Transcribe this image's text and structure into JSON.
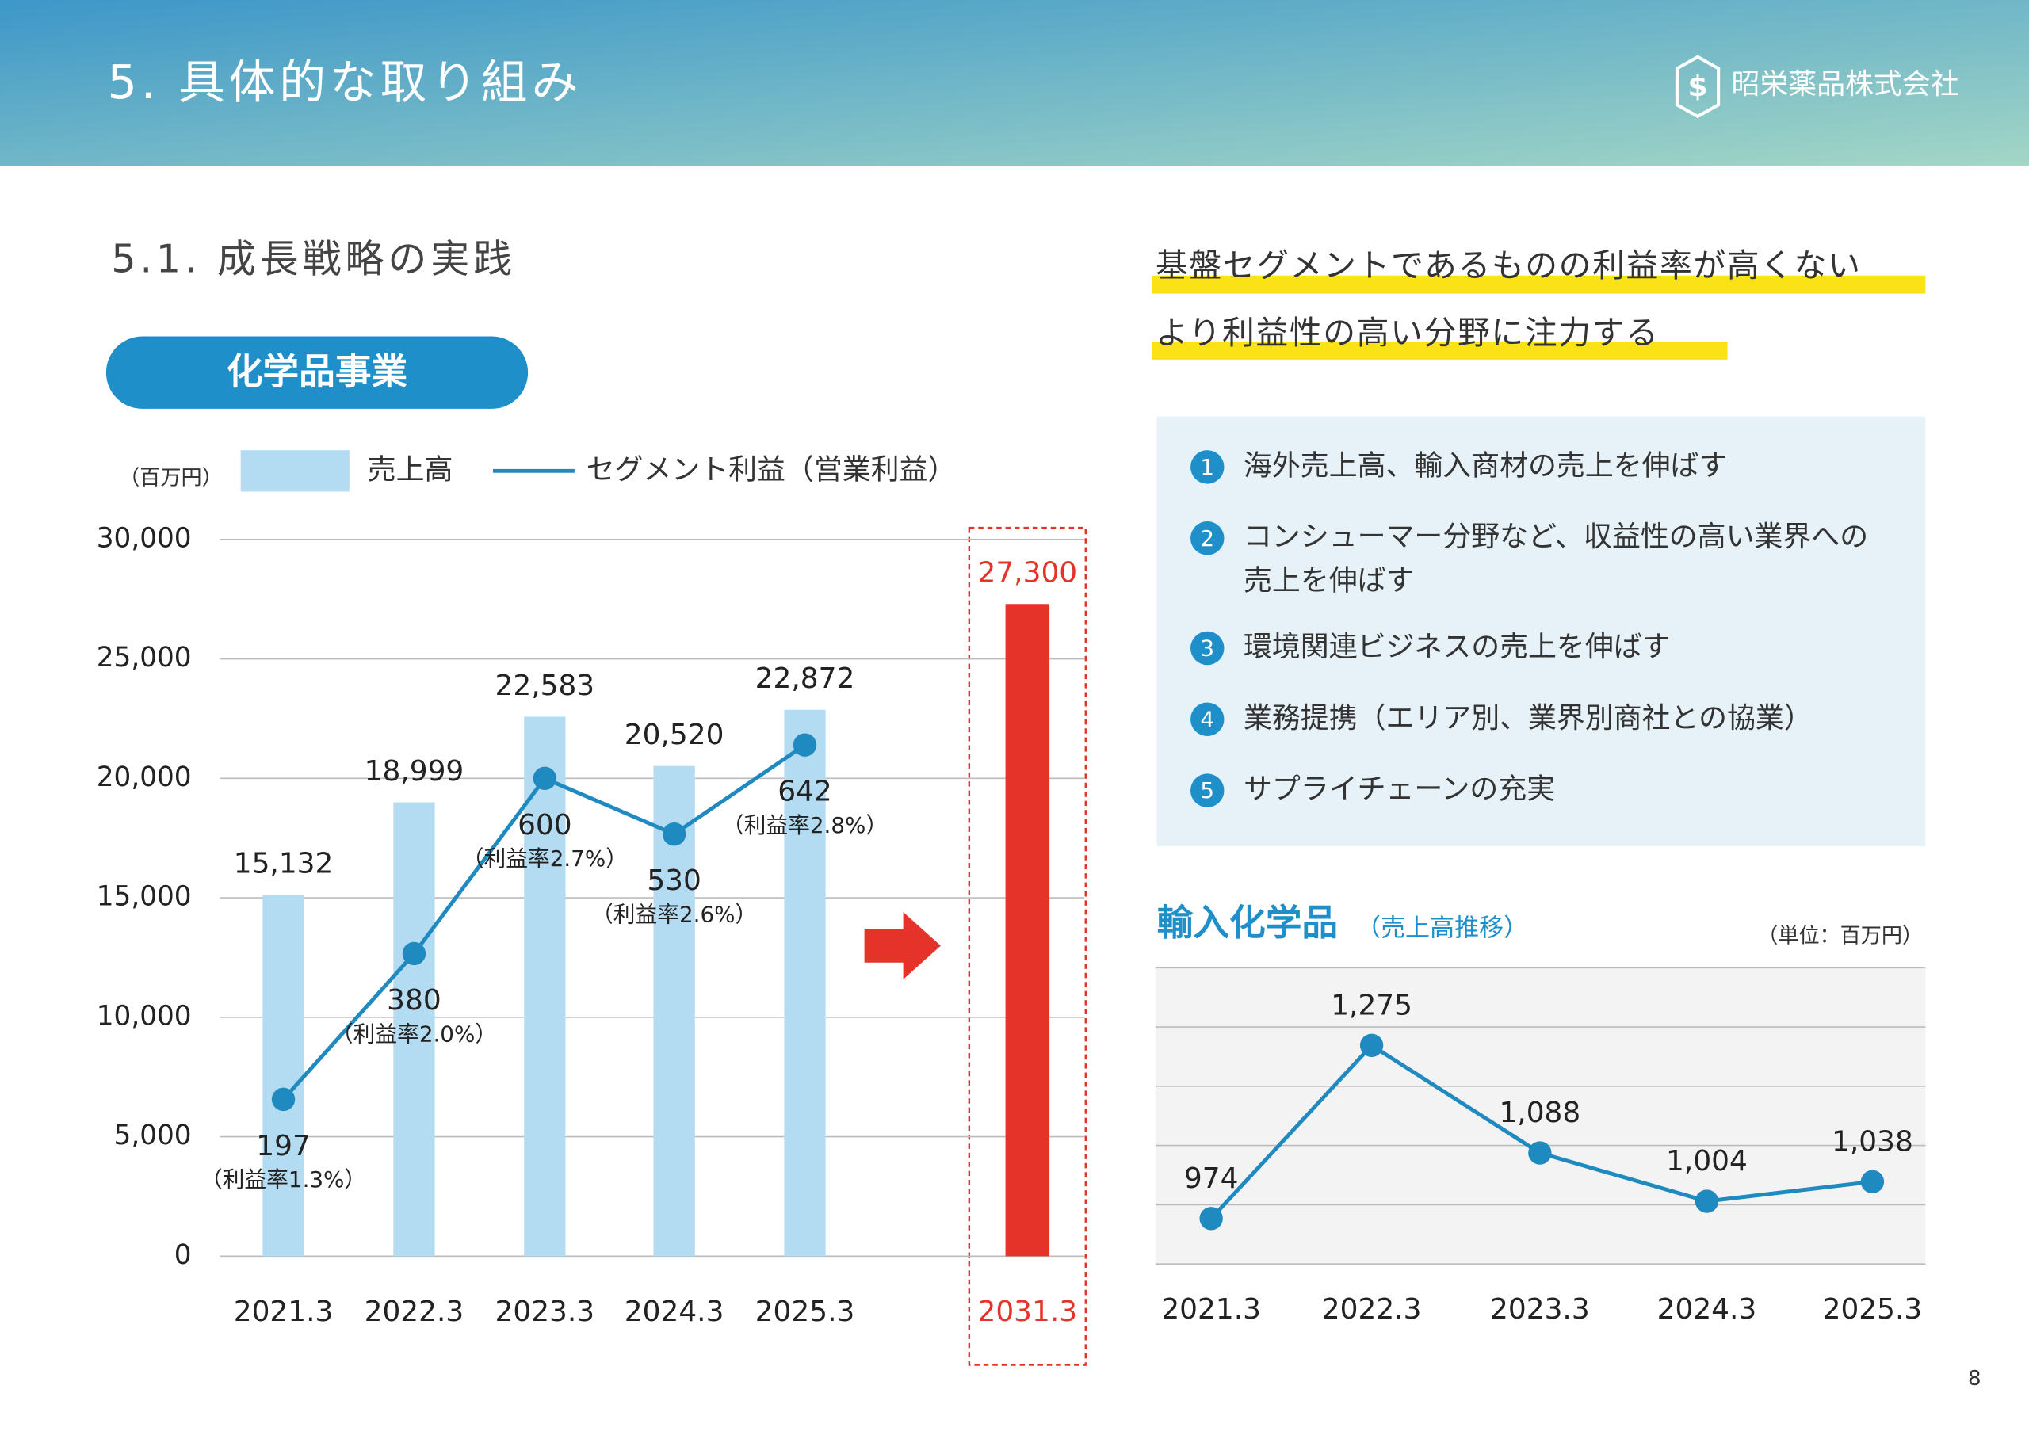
{
  "header": {
    "title": "5. 具体的な取り組み",
    "company": "昭栄薬品株式会社"
  },
  "section_title": "5.1. 成長戦略の実践",
  "badge": "化学品事業",
  "highlights": [
    "基盤セグメントであるものの利益率が高くない",
    "より利益性の高い分野に注力する"
  ],
  "items": [
    {
      "number": 1,
      "lines": [
        "海外売上高、輸入商材の売上を伸ばす"
      ]
    },
    {
      "number": 2,
      "lines": [
        "コンシューマー分野など、収益性の高い業界への",
        "売上を伸ばす"
      ]
    },
    {
      "number": 3,
      "lines": [
        "環境関連ビジネスの売上を伸ばす"
      ]
    },
    {
      "number": 4,
      "lines": [
        "業務提携（エリア別、業界別商社との協業）"
      ]
    },
    {
      "number": 5,
      "lines": [
        "サプライチェーンの充実"
      ]
    }
  ],
  "page_number": 8,
  "chart_data": [
    {
      "type": "bar-line",
      "unit": "（百万円）",
      "categories": [
        "2021.3",
        "2022.3",
        "2023.3",
        "2024.3",
        "2025.3",
        "2031.3"
      ],
      "series": [
        {
          "name": "売上高",
          "type": "bar",
          "colors": [
            "#b3dbf2",
            "#b3dbf2",
            "#b3dbf2",
            "#b3dbf2",
            "#b3dbf2",
            "#e63329"
          ],
          "values": [
            15132,
            18999,
            22583,
            20520,
            22872,
            27300
          ],
          "value_labels": [
            "15,132",
            "18,999",
            "22,583",
            "20,520",
            "22,872",
            "27,300"
          ]
        },
        {
          "name": "セグメント利益（営業利益）",
          "type": "line",
          "axis": "y2",
          "color": "#1f8ac0",
          "values": [
            197,
            380,
            600,
            530,
            642,
            null
          ],
          "annotations": [
            "（利益率1.3%）",
            "（利益率2.0%）",
            "（利益率2.7%）",
            "（利益率2.6%）",
            "（利益率2.8%）",
            null
          ]
        }
      ],
      "ylim": [
        0,
        30000
      ],
      "yticks": [
        0,
        {
          "value": 5000,
          "label": "5,000"
        },
        {
          "value": 10000,
          "label": "10,000"
        },
        {
          "value": 15000,
          "label": "15,000"
        },
        {
          "value": 20000,
          "label": "20,000"
        },
        {
          "value": 25000,
          "label": "25,000"
        },
        {
          "value": 30000,
          "label": "30,000"
        }
      ],
      "y2lim": [
        0,
        900
      ],
      "grid": true
    },
    {
      "type": "line",
      "title": "輸入化学品",
      "subtitle": "（売上高推移）",
      "unit": "（単位：百万円）",
      "categories": [
        "2021.3",
        "2022.3",
        "2023.3",
        "2024.3",
        "2025.3"
      ],
      "values": [
        974,
        1275,
        1088,
        1004,
        1038
      ],
      "value_labels": [
        "974",
        "1,275",
        "1,088",
        "1,004",
        "1,038"
      ],
      "color": "#1f8ac0",
      "ylim": [
        895,
        1410
      ]
    }
  ]
}
